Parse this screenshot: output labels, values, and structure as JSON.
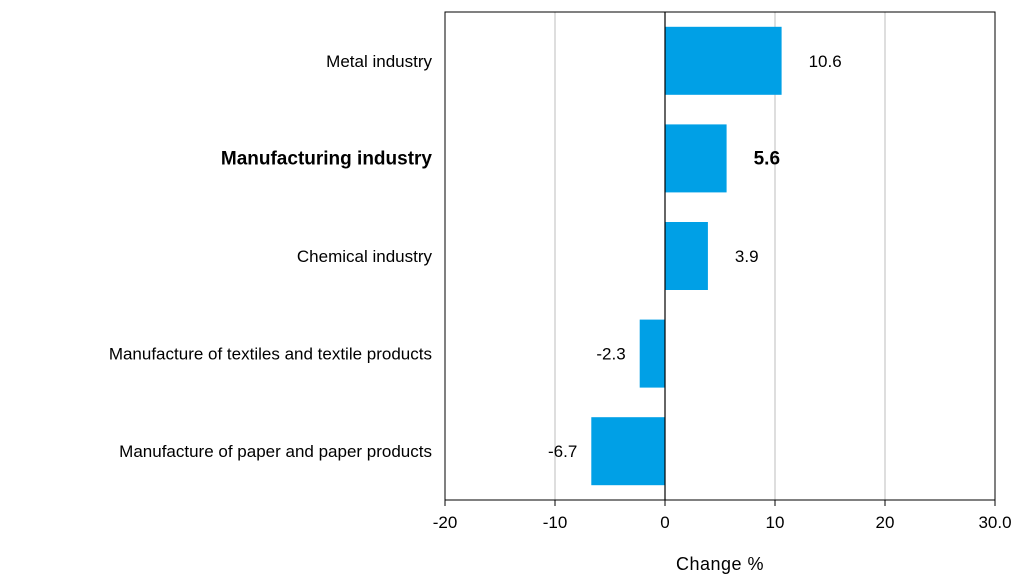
{
  "chart_data": {
    "type": "bar",
    "orientation": "horizontal",
    "categories": [
      "Metal industry",
      "Manufacturing industry",
      "Chemical industry",
      "Manufacture of textiles and textile products",
      "Manufacture of paper and paper products"
    ],
    "values": [
      10.6,
      5.6,
      3.9,
      -2.3,
      -6.7
    ],
    "value_labels": [
      "10.6",
      "5.6",
      "3.9",
      "-2.3",
      "-6.7"
    ],
    "highlighted_category": "Manufacturing industry",
    "xlabel": "Change %",
    "xlim": [
      -20,
      30
    ],
    "xticks": [
      -20,
      -10,
      0,
      10,
      20,
      30
    ],
    "xtick_labels": [
      "-20",
      "-10",
      "0",
      "10",
      "20",
      "30.0"
    ],
    "grid": "vertical",
    "bar_color": "#00a0e6"
  }
}
